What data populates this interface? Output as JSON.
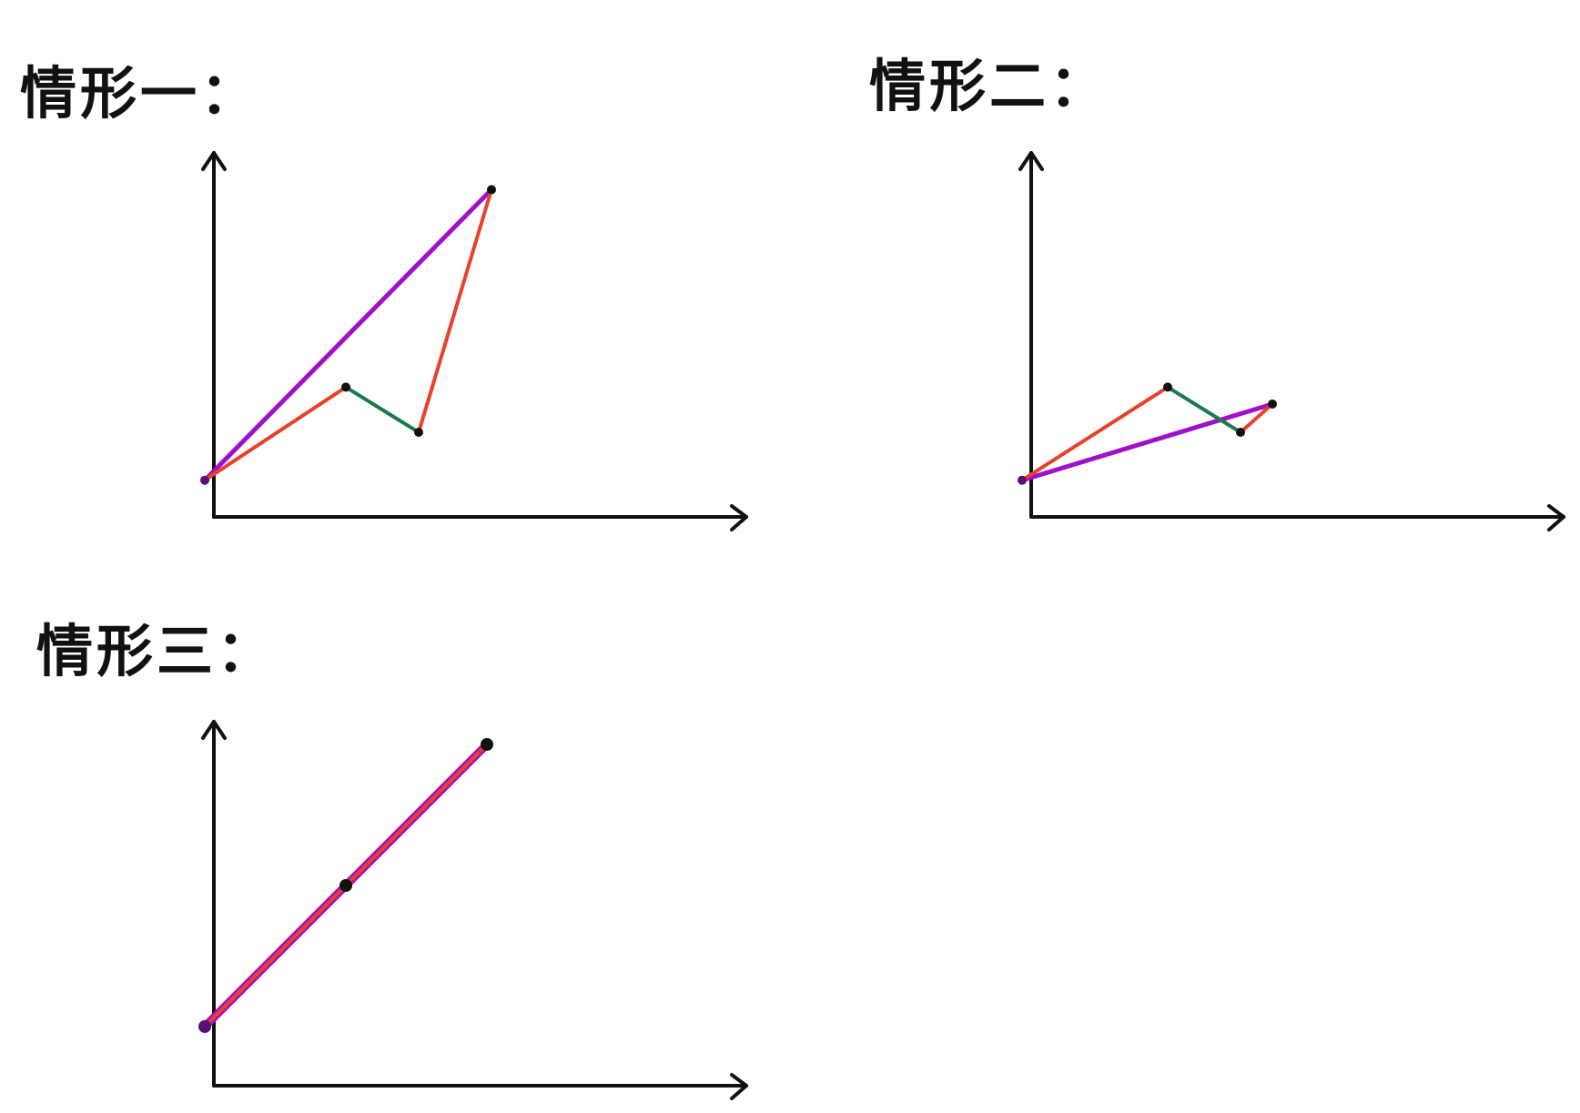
{
  "cases": [
    {
      "title": "情形一：",
      "points": [
        [
          1,
          1
        ],
        [
          2.55,
          2.65
        ],
        [
          3.35,
          1.85
        ],
        [
          4.15,
          6.15
        ]
      ],
      "segment_colors": [
        "red",
        "green",
        "red"
      ],
      "chord_color": "purple"
    },
    {
      "title": "情形二：",
      "points": [
        [
          1,
          1
        ],
        [
          2.6,
          2.65
        ],
        [
          3.4,
          1.85
        ],
        [
          3.75,
          2.35
        ]
      ],
      "segment_colors": [
        "red",
        "green",
        "red"
      ],
      "chord_color": "purple"
    },
    {
      "title": "情形三：",
      "points": [
        [
          1,
          1
        ],
        [
          2.55,
          2.55
        ],
        [
          4.1,
          4.1
        ]
      ],
      "segment_colors": [
        "red",
        "red"
      ],
      "chord_color": "purple"
    }
  ],
  "colors": {
    "red": "#e8402a",
    "green": "#1a7a4a",
    "purple": "#a010c8",
    "ink": "#111111"
  }
}
